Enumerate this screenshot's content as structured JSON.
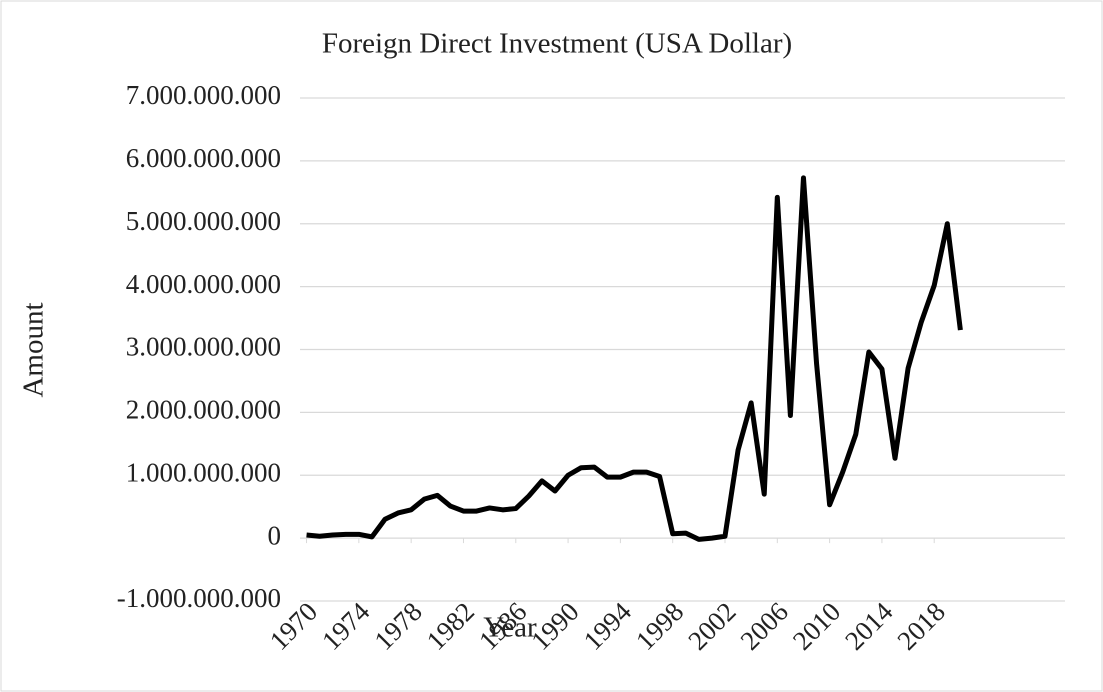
{
  "chart_data": {
    "type": "line",
    "title": "Foreign Direct Investment (USA Dollar)",
    "xlabel": "Year",
    "ylabel": "Amount",
    "x": [
      1970,
      1971,
      1972,
      1973,
      1974,
      1975,
      1976,
      1977,
      1978,
      1979,
      1980,
      1981,
      1982,
      1983,
      1984,
      1985,
      1986,
      1987,
      1988,
      1989,
      1990,
      1991,
      1992,
      1993,
      1994,
      1995,
      1996,
      1997,
      1998,
      1999,
      2000,
      2001,
      2002,
      2003,
      2004,
      2005,
      2006,
      2007,
      2008,
      2009,
      2010,
      2011,
      2012,
      2013,
      2014,
      2015,
      2016,
      2017,
      2018,
      2019,
      2020
    ],
    "series": [
      {
        "name": "Foreign Direct Investment",
        "color": "#000000",
        "values": [
          50000000,
          30000000,
          50000000,
          60000000,
          60000000,
          20000000,
          300000000,
          400000000,
          450000000,
          620000000,
          680000000,
          510000000,
          430000000,
          430000000,
          480000000,
          450000000,
          470000000,
          670000000,
          910000000,
          750000000,
          1000000000,
          1120000000,
          1130000000,
          970000000,
          970000000,
          1050000000,
          1050000000,
          980000000,
          70000000,
          80000000,
          -20000000,
          0,
          30000000,
          1400000000,
          2150000000,
          700000000,
          5420000000,
          1950000000,
          5730000000,
          2780000000,
          530000000,
          1050000000,
          1650000000,
          2960000000,
          2690000000,
          1270000000,
          2700000000,
          3430000000,
          4020000000,
          5000000000,
          3310000000
        ]
      }
    ],
    "xlim": [
      1969.5,
      2028
    ],
    "xticks": [
      1970,
      1974,
      1978,
      1982,
      1986,
      1990,
      1994,
      1998,
      2002,
      2006,
      2010,
      2014,
      2018
    ],
    "ylim": [
      -1000000000,
      7000000000
    ],
    "yticks": [
      {
        "value": -1000000000,
        "label": "-1.000.000.000"
      },
      0,
      {
        "value": 1000000000,
        "label": "1.000.000.000"
      },
      {
        "value": 2000000000,
        "label": "2.000.000.000"
      },
      {
        "value": 3000000000,
        "label": "3.000.000.000"
      },
      {
        "value": 4000000000,
        "label": "4.000.000.000"
      },
      {
        "value": 5000000000,
        "label": "5.000.000.000"
      },
      {
        "value": 6000000000,
        "label": "6.000.000.000"
      },
      {
        "value": 7000000000,
        "label": "7.000.000.000"
      }
    ],
    "grid": true
  }
}
